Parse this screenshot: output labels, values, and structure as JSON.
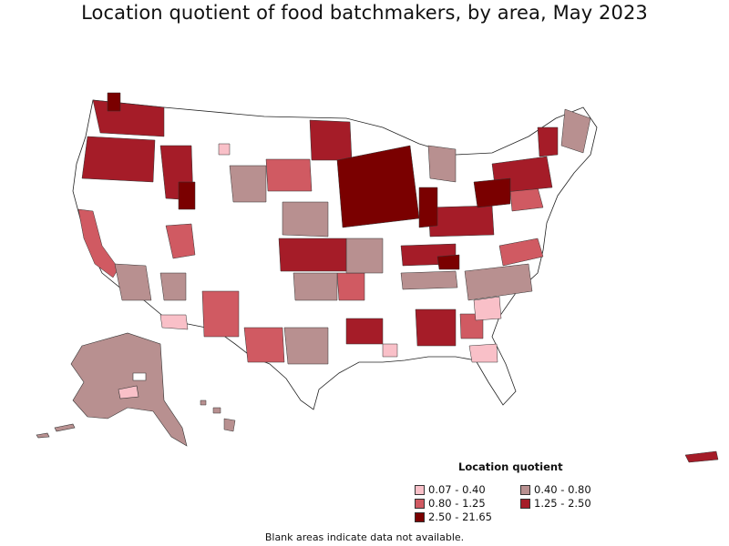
{
  "title": "Location quotient of food batchmakers, by area, May 2023",
  "legend": {
    "title": "Location quotient",
    "items": [
      {
        "label": "0.07 - 0.40",
        "color": "#f9c0c8"
      },
      {
        "label": "0.40 - 0.80",
        "color": "#b89090"
      },
      {
        "label": "0.80 - 1.25",
        "color": "#d05a62"
      },
      {
        "label": "1.25 - 2.50",
        "color": "#a51c28"
      },
      {
        "label": "2.50 - 21.65",
        "color": "#7a0000"
      }
    ]
  },
  "footnote": "Blank areas indicate data not available."
}
